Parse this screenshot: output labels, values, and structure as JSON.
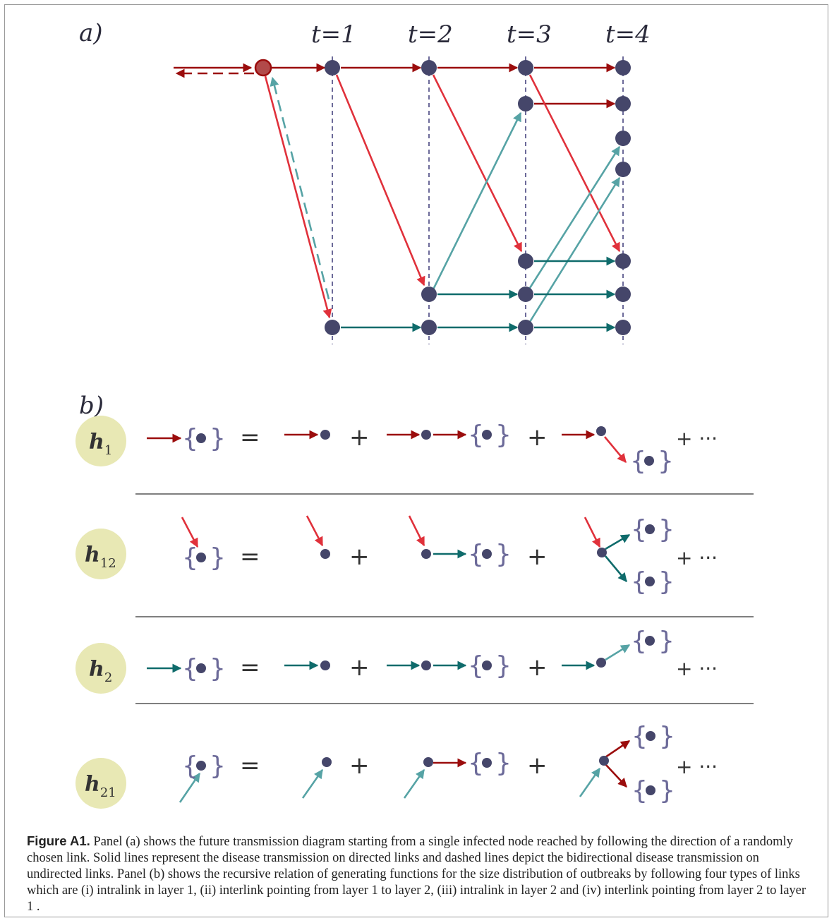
{
  "panel_a": {
    "label": "a)",
    "times": [
      "t=1",
      "t=2",
      "t=3",
      "t=4"
    ]
  },
  "panel_b": {
    "label": "b)",
    "equals": "=",
    "plus": "+",
    "ellipsis": "+ ···",
    "rows": [
      {
        "symbol": "h",
        "sub": "1"
      },
      {
        "symbol": "h",
        "sub": "12"
      },
      {
        "symbol": "h",
        "sub": "2"
      },
      {
        "symbol": "h",
        "sub": "21"
      }
    ]
  },
  "colors": {
    "dark_red": "#9b0d0d",
    "red": "#e0313b",
    "teal_dark": "#0f6b6b",
    "teal_light": "#56a3a5",
    "node": "#45466a",
    "vline": "#6c6a99",
    "circle": "#e8e8b4"
  },
  "caption": {
    "label": "Figure A1.",
    "text": "Panel (a) shows the future transmission diagram starting from a single infected node reached by following the direction of a randomly chosen link. Solid lines represent the disease transmission on directed links and dashed lines depict the bidirectional disease transmission on undirected links. Panel (b) shows the recursive relation of generating functions for the size distribution of outbreaks by following four types of links which are (i) intralink in layer 1, (ii) interlink pointing from layer 1 to layer 2, (iii) intralink in layer 2 and (iv) interlink pointing from layer 2 to layer 1 ."
  }
}
